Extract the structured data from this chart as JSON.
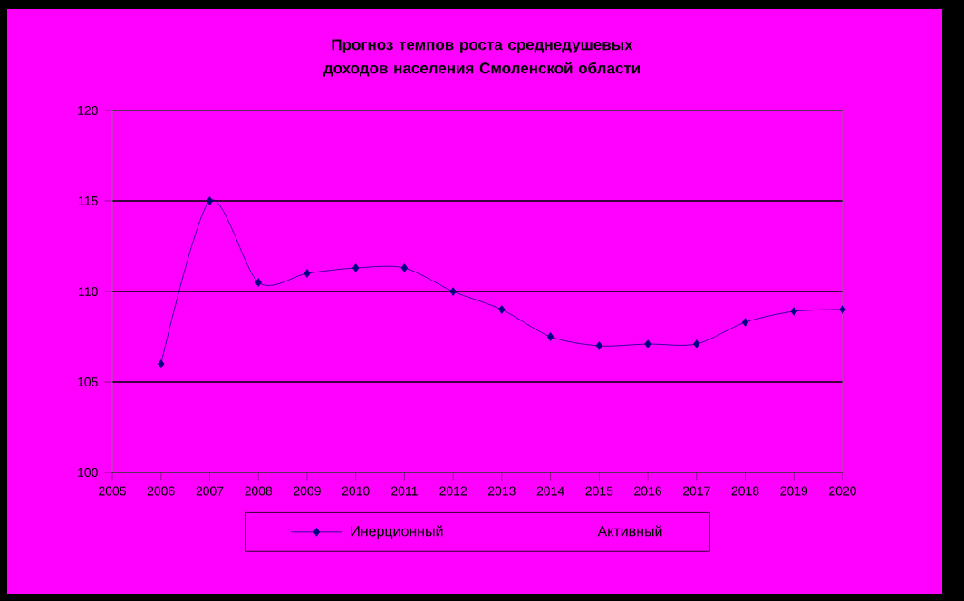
{
  "chart_data": {
    "type": "line",
    "title": "Прогноз темпов роста среднедушевых доходов населения Смоленской области",
    "categories": [
      "2005",
      "2006",
      "2007",
      "2008",
      "2009",
      "2010",
      "2011",
      "2012",
      "2013",
      "2014",
      "2015",
      "2016",
      "2017",
      "2018",
      "2019",
      "2020"
    ],
    "series": [
      {
        "name": "Инерционный",
        "color": "#000080",
        "values": [
          null,
          106,
          115,
          110.5,
          111,
          111.3,
          111.3,
          110,
          109,
          107.5,
          107,
          107.1,
          107.1,
          108.3,
          108.9,
          109
        ]
      },
      {
        "name": "Активный",
        "values": [
          null,
          null,
          null,
          null,
          null,
          null,
          null,
          null,
          null,
          null,
          null,
          null,
          null,
          null,
          null,
          null
        ]
      }
    ],
    "ylim": [
      100,
      120
    ],
    "yticks": [
      100,
      105,
      110,
      115,
      120
    ],
    "grid": "y",
    "legend": "bottom",
    "marker": "diamond",
    "line_style": "solid"
  }
}
